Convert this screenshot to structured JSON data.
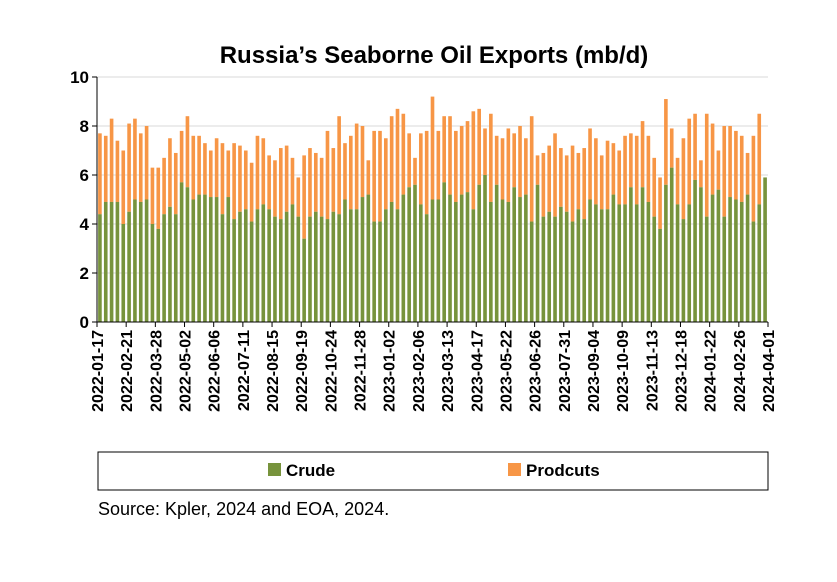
{
  "chart_data": {
    "type": "bar",
    "stacked": true,
    "title": "Russia’s Seaborne Oil Exports (mb/d)",
    "xlabel": "",
    "ylabel": "",
    "ylim": [
      0,
      10
    ],
    "yticks": [
      0,
      2,
      4,
      6,
      8,
      10
    ],
    "grid": true,
    "legend_position": "bottom",
    "x_tick_labels": [
      "2022-01-17",
      "2022-02-21",
      "2022-03-28",
      "2022-05-02",
      "2022-06-06",
      "2022-07-11",
      "2022-08-15",
      "2022-09-19",
      "2022-10-24",
      "2022-11-28",
      "2023-01-02",
      "2023-02-06",
      "2023-03-13",
      "2023-04-17",
      "2023-05-22",
      "2023-06-26",
      "2023-07-31",
      "2023-09-04",
      "2023-10-09",
      "2023-11-13",
      "2023-12-18",
      "2024-01-22",
      "2024-02-26",
      "2024-04-01"
    ],
    "series": [
      {
        "name": "Crude",
        "color": "#77933c",
        "values": [
          4.4,
          4.9,
          4.9,
          4.9,
          4.0,
          4.5,
          5.0,
          4.9,
          5.0,
          4.0,
          3.8,
          4.4,
          4.7,
          4.4,
          5.7,
          5.5,
          5.0,
          5.2,
          5.2,
          5.1,
          5.1,
          4.4,
          5.1,
          4.2,
          4.5,
          4.6,
          4.1,
          4.6,
          4.8,
          4.6,
          4.3,
          4.2,
          4.5,
          4.8,
          4.3,
          3.4,
          4.3,
          4.5,
          4.3,
          4.2,
          4.5,
          4.4,
          5.0,
          4.6,
          4.6,
          5.1,
          5.2,
          4.1,
          4.1,
          4.6,
          4.9,
          4.6,
          5.2,
          5.5,
          5.6,
          4.8,
          4.4,
          5.0,
          5.0,
          5.7,
          5.2,
          4.9,
          5.2,
          5.3,
          4.6,
          5.6,
          6.0,
          4.9,
          5.6,
          5.0,
          4.9,
          5.5,
          5.1,
          5.2,
          4.1,
          5.6,
          4.3,
          4.5,
          4.3,
          4.7,
          4.5,
          4.1,
          4.6,
          4.2,
          5.0,
          4.8,
          4.6,
          4.6,
          5.2,
          4.8,
          4.8,
          5.5,
          4.8,
          5.5,
          4.9,
          4.3,
          3.8,
          5.6,
          6.3,
          4.8,
          4.2,
          4.8,
          5.8,
          5.5,
          4.3,
          5.2,
          5.4,
          4.3,
          5.1,
          5.0,
          4.9,
          5.2,
          4.1,
          4.8,
          5.9
        ],
        "total": [
          7.7,
          7.6,
          8.3,
          7.4,
          7.0,
          8.1,
          8.3,
          7.7,
          8.0,
          6.3,
          6.3,
          6.7,
          7.5,
          6.9,
          7.8,
          8.4,
          7.6,
          7.6,
          7.3,
          7.0,
          7.5,
          7.3,
          7.0,
          7.3,
          7.2,
          7.0,
          6.5,
          7.6,
          7.5,
          6.8,
          6.6,
          7.1,
          7.2,
          6.7,
          5.9,
          6.8,
          7.1,
          6.9,
          6.7,
          7.8,
          7.1,
          8.4,
          7.3,
          7.6,
          8.1,
          8.0,
          6.6,
          7.8,
          7.8,
          7.5,
          8.4,
          8.7,
          8.5,
          7.7,
          6.7,
          7.7,
          7.8,
          9.2,
          7.8,
          8.4,
          8.4,
          7.8,
          8.0,
          8.2,
          8.6,
          8.7,
          7.9,
          8.5,
          7.6,
          7.5,
          7.9,
          7.7,
          8.0,
          7.5,
          8.4,
          6.8,
          6.9,
          7.2,
          7.7,
          7.1,
          6.8,
          7.2,
          6.9,
          7.1,
          7.9,
          7.5,
          6.8,
          7.4,
          7.3,
          7.0,
          7.6,
          7.7,
          7.6,
          8.2,
          7.6,
          6.7,
          5.9,
          9.1,
          7.9,
          6.7,
          7.5,
          8.3,
          8.5,
          6.6,
          8.5,
          8.1,
          7.0,
          8.0,
          8.0,
          7.8,
          7.6,
          6.9,
          7.6,
          8.5
        ]
      },
      {
        "name": "Prodcuts",
        "color": "#f79646",
        "values": []
      }
    ]
  },
  "source_note": "Source: Kpler, 2024 and EOA, 2024."
}
